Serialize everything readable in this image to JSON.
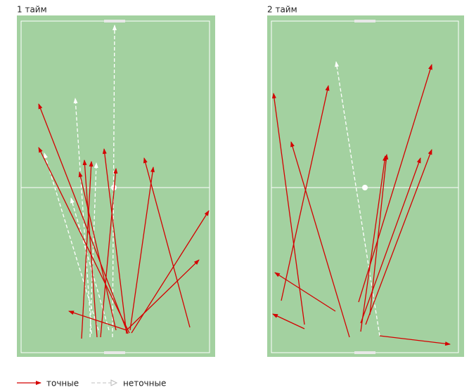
{
  "halves": [
    {
      "title": "1 тайм"
    },
    {
      "title": "2 тайм"
    }
  ],
  "legend": {
    "accurate": "точные",
    "inaccurate": "неточные"
  }
}
